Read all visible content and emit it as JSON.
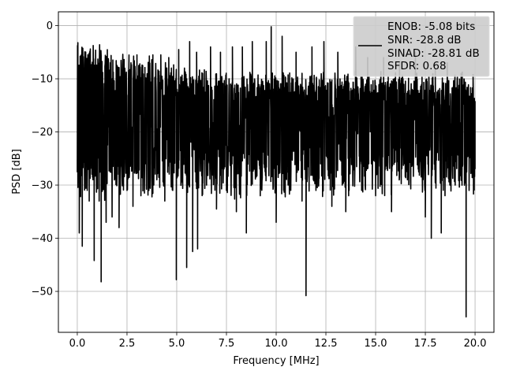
{
  "chart_data": {
    "type": "line",
    "title": "",
    "xlabel": "Frequency [MHz]",
    "ylabel": "PSD [dB]",
    "xlim": [
      -0.95,
      20.95
    ],
    "ylim": [
      -57.7,
      2.6
    ],
    "xticks": [
      0.0,
      2.5,
      5.0,
      7.5,
      10.0,
      12.5,
      15.0,
      17.5,
      20.0
    ],
    "xtick_labels": [
      "0.0",
      "2.5",
      "5.0",
      "7.5",
      "10.0",
      "12.5",
      "15.0",
      "17.5",
      "20.0"
    ],
    "yticks": [
      0,
      -10,
      -20,
      -30,
      -40,
      -50
    ],
    "ytick_labels": [
      "0",
      "−10",
      "−20",
      "−30",
      "−40",
      "−50"
    ],
    "grid": true,
    "legend_position": "top-right",
    "legend": {
      "lines": [
        "ENOB: -5.08 bits",
        "SNR: -28.8 dB",
        "SINAD: -28.81 dB",
        "SFDR: 0.68"
      ]
    },
    "series": [
      {
        "color": "#000000",
        "x_start": 0.0,
        "x_end": 20.0,
        "dense_noise_band": {
          "upper_db_approx": -10,
          "lower_db_approx": -30,
          "typical_db_approx": -17
        },
        "points": [
          [
            0.0,
            -27.5
          ],
          [
            0.03,
            -3.2
          ],
          [
            0.06,
            -14
          ],
          [
            0.1,
            -39
          ],
          [
            0.18,
            -12
          ],
          [
            0.25,
            -41.5
          ],
          [
            0.35,
            -10
          ],
          [
            0.5,
            -31
          ],
          [
            0.6,
            -33
          ],
          [
            0.72,
            -13
          ],
          [
            0.85,
            -44.2
          ],
          [
            1.0,
            -11
          ],
          [
            1.1,
            -33
          ],
          [
            1.2,
            -48.2
          ],
          [
            1.35,
            -12
          ],
          [
            1.45,
            -37
          ],
          [
            1.6,
            -9
          ],
          [
            1.75,
            -36
          ],
          [
            2.0,
            -7.5
          ],
          [
            2.1,
            -38
          ],
          [
            2.3,
            -10
          ],
          [
            2.5,
            -31
          ],
          [
            2.6,
            -7
          ],
          [
            2.8,
            -34
          ],
          [
            3.0,
            -5.5
          ],
          [
            3.2,
            -32
          ],
          [
            3.4,
            -9
          ],
          [
            3.6,
            -31
          ],
          [
            3.8,
            -5.5
          ],
          [
            4.0,
            -29
          ],
          [
            4.2,
            -5.5
          ],
          [
            4.4,
            -33
          ],
          [
            4.6,
            -6
          ],
          [
            4.8,
            -31
          ],
          [
            4.98,
            -47.8
          ],
          [
            5.1,
            -4.5
          ],
          [
            5.3,
            -30
          ],
          [
            5.5,
            -45.5
          ],
          [
            5.65,
            -3
          ],
          [
            5.8,
            -42.5
          ],
          [
            6.0,
            -5
          ],
          [
            6.05,
            -42
          ],
          [
            6.3,
            -9
          ],
          [
            6.5,
            -30
          ],
          [
            6.7,
            -4
          ],
          [
            7.0,
            -34.5
          ],
          [
            7.2,
            -5
          ],
          [
            7.5,
            -31
          ],
          [
            7.8,
            -4
          ],
          [
            8.0,
            -35
          ],
          [
            8.3,
            -4
          ],
          [
            8.5,
            -39
          ],
          [
            8.8,
            -3
          ],
          [
            9.2,
            -32
          ],
          [
            9.5,
            -3
          ],
          [
            9.75,
            -0.2
          ],
          [
            10.0,
            -37
          ],
          [
            10.3,
            -2
          ],
          [
            10.6,
            -30
          ],
          [
            11.0,
            -5
          ],
          [
            11.3,
            -33
          ],
          [
            11.5,
            -50.8
          ],
          [
            11.8,
            -4
          ],
          [
            12.0,
            -31
          ],
          [
            12.4,
            -3
          ],
          [
            12.8,
            -34
          ],
          [
            13.1,
            -5
          ],
          [
            13.5,
            -35
          ],
          [
            14.0,
            -4
          ],
          [
            14.3,
            -31
          ],
          [
            14.6,
            -6
          ],
          [
            15.0,
            -32
          ],
          [
            15.4,
            -6
          ],
          [
            15.8,
            -35
          ],
          [
            16.2,
            -7
          ],
          [
            16.6,
            -29
          ],
          [
            17.0,
            -5
          ],
          [
            17.5,
            -36
          ],
          [
            17.8,
            -40
          ],
          [
            18.0,
            -8
          ],
          [
            18.3,
            -39
          ],
          [
            18.6,
            -7
          ],
          [
            19.0,
            -30
          ],
          [
            19.3,
            -9
          ],
          [
            19.55,
            -54.8
          ],
          [
            19.7,
            -31
          ],
          [
            20.0,
            -27
          ]
        ]
      }
    ]
  }
}
